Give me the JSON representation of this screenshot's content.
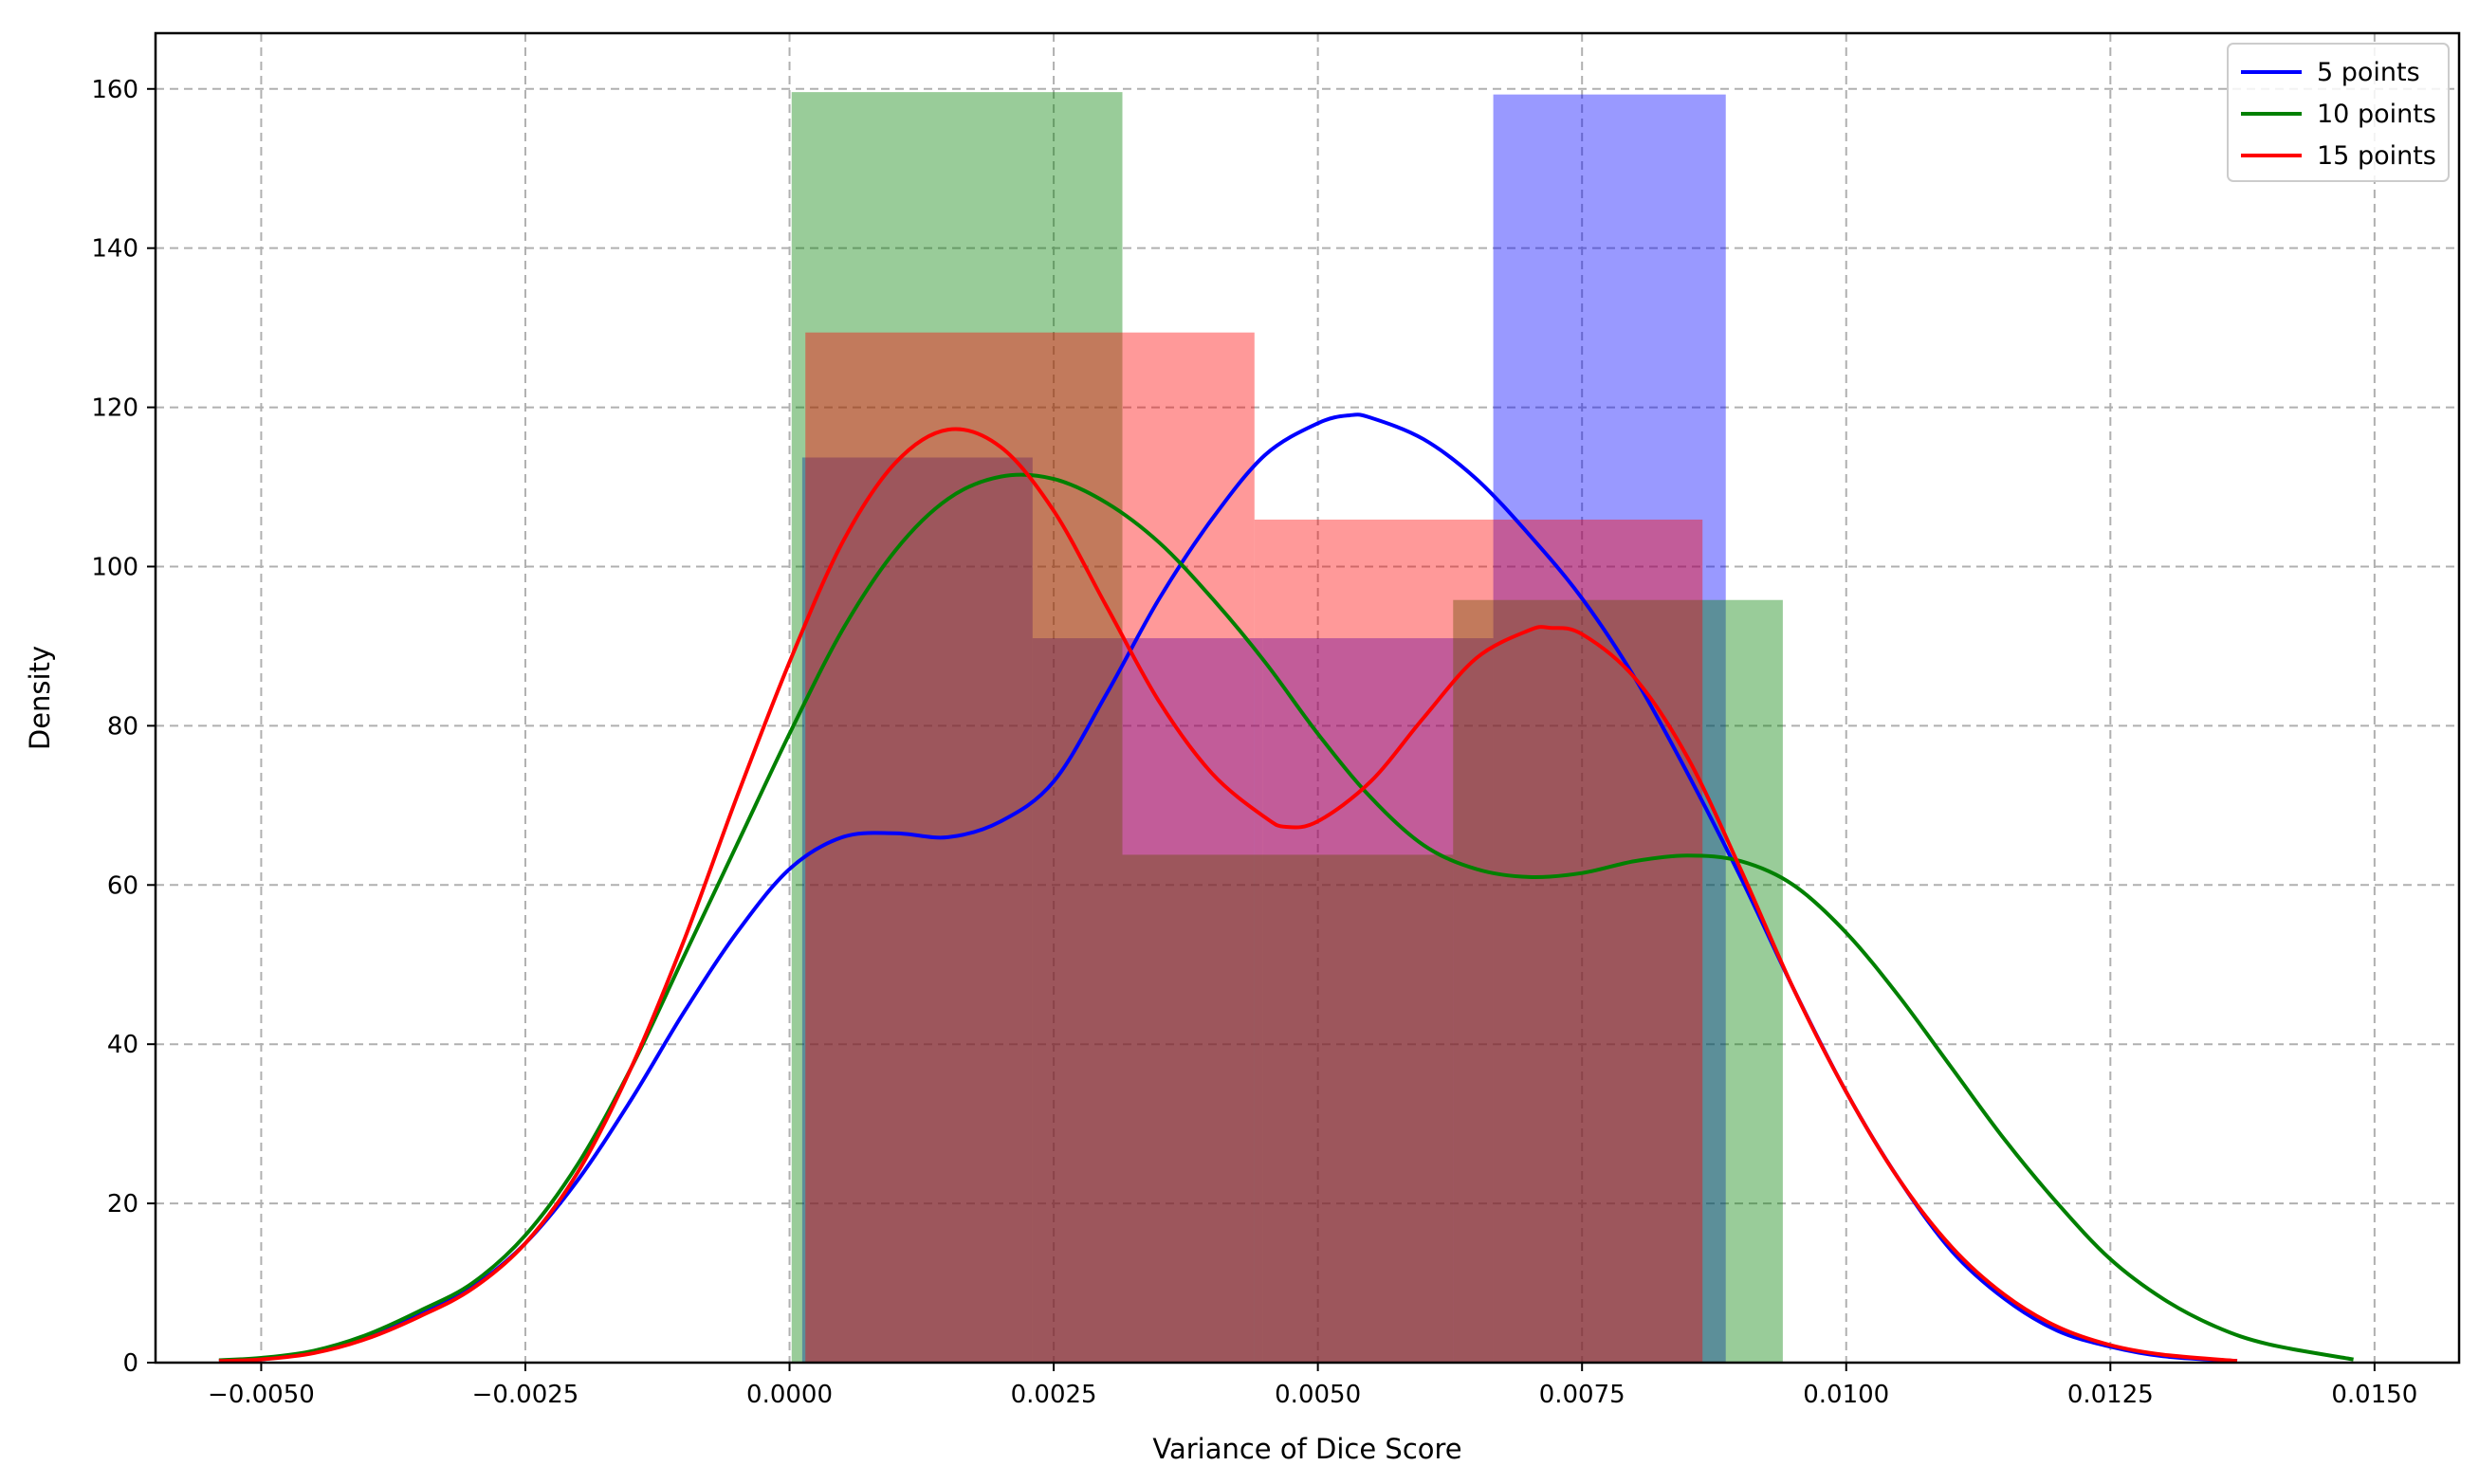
{
  "chart_data": {
    "type": "histogram+kde",
    "title": "",
    "xlabel": "Variance of Dice Score",
    "ylabel": "Density",
    "xlim": [
      -0.006,
      0.0158
    ],
    "ylim": [
      0,
      167
    ],
    "x_ticks": [
      -0.005,
      -0.0025,
      0.0,
      0.0025,
      0.005,
      0.0075,
      0.01,
      0.0125,
      0.015
    ],
    "x_tick_labels": [
      "−0.0050",
      "−0.0025",
      "0.0000",
      "0.0025",
      "0.0050",
      "0.0075",
      "0.0100",
      "0.0125",
      "0.0150"
    ],
    "y_ticks": [
      0,
      20,
      40,
      60,
      80,
      100,
      120,
      140,
      160
    ],
    "y_tick_labels": [
      "0",
      "20",
      "40",
      "60",
      "80",
      "100",
      "120",
      "140",
      "160"
    ],
    "grid": true,
    "legend_position": "top-right",
    "series": [
      {
        "name": "5 points",
        "color": "#0000ff",
        "hist_color": "#0000ff",
        "hist_bins": [
          {
            "x0": 0.00012,
            "x1": 0.0023,
            "density": 113.7
          },
          {
            "x0": 0.0023,
            "x1": 0.00448,
            "density": 91.0
          },
          {
            "x0": 0.00448,
            "x1": 0.00666,
            "density": 91.0
          },
          {
            "x0": 0.00666,
            "x1": 0.00886,
            "density": 159.3
          }
        ],
        "kde": [
          [
            -0.0054,
            0.2
          ],
          [
            -0.005,
            0.4
          ],
          [
            -0.0045,
            1.4
          ],
          [
            -0.004,
            3.3
          ],
          [
            -0.0035,
            6.0
          ],
          [
            -0.003,
            9.5
          ],
          [
            -0.0025,
            15.0
          ],
          [
            -0.002,
            23.0
          ],
          [
            -0.0015,
            33.0
          ],
          [
            -0.001,
            44.0
          ],
          [
            -0.0005,
            54.0
          ],
          [
            0.0,
            62.0
          ],
          [
            0.0005,
            66.0
          ],
          [
            0.001,
            66.5
          ],
          [
            0.0015,
            66.0
          ],
          [
            0.002,
            68.0
          ],
          [
            0.0025,
            73.0
          ],
          [
            0.003,
            84.0
          ],
          [
            0.0035,
            96.0
          ],
          [
            0.004,
            106.0
          ],
          [
            0.0045,
            114.0
          ],
          [
            0.005,
            118.0
          ],
          [
            0.0053,
            119.0
          ],
          [
            0.0055,
            118.7
          ],
          [
            0.006,
            116.0
          ],
          [
            0.0065,
            111.0
          ],
          [
            0.007,
            104.0
          ],
          [
            0.0075,
            96.0
          ],
          [
            0.008,
            86.0
          ],
          [
            0.0085,
            74.0
          ],
          [
            0.009,
            61.0
          ],
          [
            0.0095,
            47.0
          ],
          [
            0.01,
            34.0
          ],
          [
            0.0105,
            23.0
          ],
          [
            0.011,
            14.0
          ],
          [
            0.0115,
            8.0
          ],
          [
            0.012,
            4.0
          ],
          [
            0.0125,
            2.0
          ],
          [
            0.013,
            0.8
          ],
          [
            0.0137,
            0.2
          ]
        ]
      },
      {
        "name": "10 points",
        "color": "#008000",
        "hist_color": "#008000",
        "hist_bins": [
          {
            "x0": 2e-05,
            "x1": 0.00315,
            "density": 159.6
          },
          {
            "x0": 0.00315,
            "x1": 0.00628,
            "density": 63.8
          },
          {
            "x0": 0.00628,
            "x1": 0.0094,
            "density": 95.8
          }
        ],
        "kde": [
          [
            -0.0054,
            0.3
          ],
          [
            -0.005,
            0.6
          ],
          [
            -0.0045,
            1.5
          ],
          [
            -0.004,
            3.5
          ],
          [
            -0.0035,
            6.5
          ],
          [
            -0.003,
            10.0
          ],
          [
            -0.0025,
            16.0
          ],
          [
            -0.002,
            25.0
          ],
          [
            -0.0015,
            37.0
          ],
          [
            -0.001,
            51.0
          ],
          [
            -0.0005,
            65.0
          ],
          [
            0.0,
            79.0
          ],
          [
            0.0005,
            92.0
          ],
          [
            0.001,
            102.0
          ],
          [
            0.0015,
            108.5
          ],
          [
            0.002,
            111.3
          ],
          [
            0.0025,
            111.0
          ],
          [
            0.003,
            108.0
          ],
          [
            0.0035,
            103.0
          ],
          [
            0.004,
            96.0
          ],
          [
            0.0045,
            88.0
          ],
          [
            0.005,
            79.0
          ],
          [
            0.0055,
            71.0
          ],
          [
            0.006,
            65.0
          ],
          [
            0.0065,
            62.0
          ],
          [
            0.007,
            61.0
          ],
          [
            0.0075,
            61.5
          ],
          [
            0.008,
            63.0
          ],
          [
            0.0085,
            63.7
          ],
          [
            0.009,
            63.0
          ],
          [
            0.0095,
            60.0
          ],
          [
            0.01,
            54.0
          ],
          [
            0.0105,
            46.0
          ],
          [
            0.011,
            37.0
          ],
          [
            0.0115,
            28.0
          ],
          [
            0.012,
            20.0
          ],
          [
            0.0125,
            13.0
          ],
          [
            0.013,
            8.0
          ],
          [
            0.0135,
            4.5
          ],
          [
            0.014,
            2.3
          ],
          [
            0.0148,
            0.4
          ]
        ]
      },
      {
        "name": "15 points",
        "color": "#ff0000",
        "hist_color": "#ff0000",
        "hist_bins": [
          {
            "x0": 0.00015,
            "x1": 0.0044,
            "density": 129.4
          },
          {
            "x0": 0.0044,
            "x1": 0.00864,
            "density": 105.9
          }
        ],
        "kde": [
          [
            -0.0054,
            0.2
          ],
          [
            -0.005,
            0.4
          ],
          [
            -0.0045,
            1.2
          ],
          [
            -0.004,
            3.0
          ],
          [
            -0.0035,
            5.8
          ],
          [
            -0.003,
            9.3
          ],
          [
            -0.0025,
            15.0
          ],
          [
            -0.002,
            24.0
          ],
          [
            -0.0015,
            37.0
          ],
          [
            -0.001,
            53.0
          ],
          [
            -0.0005,
            71.0
          ],
          [
            0.0,
            88.0
          ],
          [
            0.0005,
            103.0
          ],
          [
            0.001,
            113.0
          ],
          [
            0.0015,
            117.2
          ],
          [
            0.002,
            115.0
          ],
          [
            0.0025,
            107.0
          ],
          [
            0.003,
            95.0
          ],
          [
            0.0035,
            83.0
          ],
          [
            0.004,
            74.0
          ],
          [
            0.0045,
            68.5
          ],
          [
            0.0047,
            67.3
          ],
          [
            0.005,
            68.0
          ],
          [
            0.0055,
            73.0
          ],
          [
            0.006,
            81.0
          ],
          [
            0.0065,
            88.5
          ],
          [
            0.007,
            92.0
          ],
          [
            0.0072,
            92.3
          ],
          [
            0.0075,
            91.5
          ],
          [
            0.008,
            86.0
          ],
          [
            0.0085,
            76.0
          ],
          [
            0.009,
            62.0
          ],
          [
            0.0095,
            47.0
          ],
          [
            0.01,
            34.0
          ],
          [
            0.0105,
            23.0
          ],
          [
            0.011,
            14.5
          ],
          [
            0.0115,
            8.5
          ],
          [
            0.012,
            4.5
          ],
          [
            0.0125,
            2.2
          ],
          [
            0.013,
            1.0
          ],
          [
            0.0137,
            0.2
          ]
        ]
      }
    ]
  }
}
